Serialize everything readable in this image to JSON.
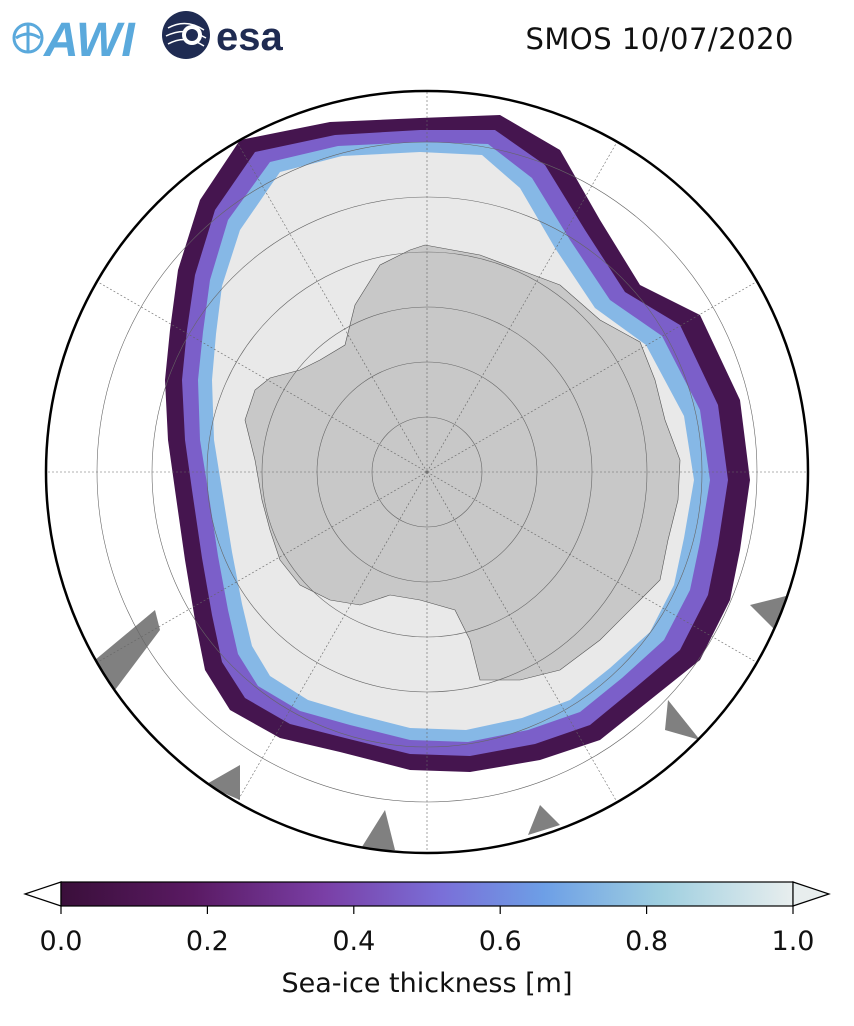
{
  "header": {
    "logo_awi": "AWI",
    "logo_esa": "esa",
    "title": "SMOS 10/07/2020"
  },
  "map": {
    "projection": "south-polar-stereographic",
    "land_color": "#c8c8c8",
    "thick_ice_color": "#e9e9e9",
    "edge_color": "#45154f",
    "ocean_color": "#ffffff",
    "border_color": "#000000"
  },
  "colorbar": {
    "label": "Sea-ice thickness [m]",
    "ticks": [
      "0.0",
      "0.2",
      "0.4",
      "0.6",
      "0.8",
      "1.0"
    ],
    "tick_values": [
      0.0,
      0.2,
      0.4,
      0.6,
      0.8,
      1.0
    ],
    "range": [
      0.0,
      1.0
    ],
    "colors": [
      "#3a0f3a",
      "#5a1a63",
      "#7a3fa6",
      "#7a6fd8",
      "#6d9fe6",
      "#9fcfe0",
      "#e8eeee"
    ]
  }
}
